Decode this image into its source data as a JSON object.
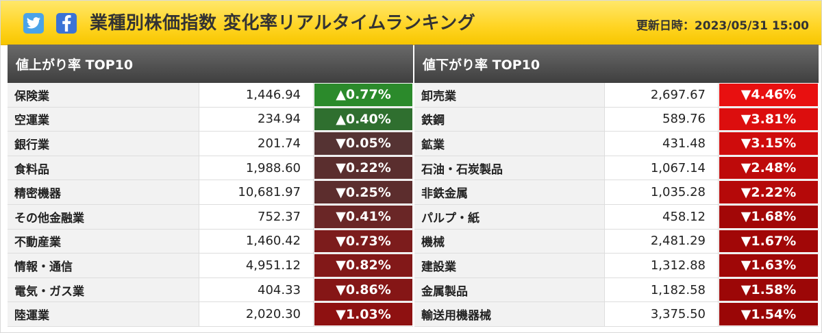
{
  "header": {
    "title": "業種別株価指数 変化率リアルタイムランキング",
    "updated": "更新日時：2023/05/31 15:00",
    "twitter_icon": "twitter-icon",
    "facebook_icon": "facebook-icon"
  },
  "colors": {
    "header_yellow": "#ffd422",
    "panel_header": "#4a4a4a",
    "up_strong": "#228b22",
    "up_mild": "#2e6b2e",
    "down_dark": "#5a2a2a",
    "down_red": "#a00000",
    "down_bright": "#e00000"
  },
  "gainers": {
    "heading": "値上がり率 TOP10",
    "rows": [
      {
        "name": "保険業",
        "value": "1,446.94",
        "change": "▲0.77%",
        "color": "#2b8a2b"
      },
      {
        "name": "空運業",
        "value": "234.94",
        "change": "▲0.40%",
        "color": "#2f6f2f"
      },
      {
        "name": "銀行業",
        "value": "201.74",
        "change": "▼0.05%",
        "color": "#553333"
      },
      {
        "name": "食料品",
        "value": "1,988.60",
        "change": "▼0.22%",
        "color": "#5a2e2e"
      },
      {
        "name": "精密機器",
        "value": "10,681.97",
        "change": "▼0.25%",
        "color": "#5c2d2d"
      },
      {
        "name": "その他金融業",
        "value": "752.37",
        "change": "▼0.41%",
        "color": "#6a2626"
      },
      {
        "name": "不動産業",
        "value": "1,460.42",
        "change": "▼0.73%",
        "color": "#7c1c1c"
      },
      {
        "name": "情報・通信",
        "value": "4,951.12",
        "change": "▼0.82%",
        "color": "#821818"
      },
      {
        "name": "電気・ガス業",
        "value": "404.33",
        "change": "▼0.86%",
        "color": "#851616"
      },
      {
        "name": "陸運業",
        "value": "2,020.30",
        "change": "▼1.03%",
        "color": "#8e1111"
      }
    ]
  },
  "losers": {
    "heading": "値下がり率 TOP10",
    "rows": [
      {
        "name": "卸売業",
        "value": "2,697.67",
        "change": "▼4.46%",
        "color": "#e81010"
      },
      {
        "name": "鉄鋼",
        "value": "589.76",
        "change": "▼3.81%",
        "color": "#dc0e0e"
      },
      {
        "name": "鉱業",
        "value": "431.48",
        "change": "▼3.15%",
        "color": "#cf0c0c"
      },
      {
        "name": "石油・石炭製品",
        "value": "1,067.14",
        "change": "▼2.48%",
        "color": "#be0a0a"
      },
      {
        "name": "非鉄金属",
        "value": "1,035.28",
        "change": "▼2.22%",
        "color": "#b50909"
      },
      {
        "name": "パルプ・紙",
        "value": "458.12",
        "change": "▼1.68%",
        "color": "#a20707"
      },
      {
        "name": "機械",
        "value": "2,481.29",
        "change": "▼1.67%",
        "color": "#a10707"
      },
      {
        "name": "建設業",
        "value": "1,312.88",
        "change": "▼1.63%",
        "color": "#9f0707"
      },
      {
        "name": "金属製品",
        "value": "1,182.58",
        "change": "▼1.58%",
        "color": "#9c0707"
      },
      {
        "name": "輸送用機器械",
        "value": "3,375.50",
        "change": "▼1.54%",
        "color": "#9a0606"
      }
    ]
  }
}
